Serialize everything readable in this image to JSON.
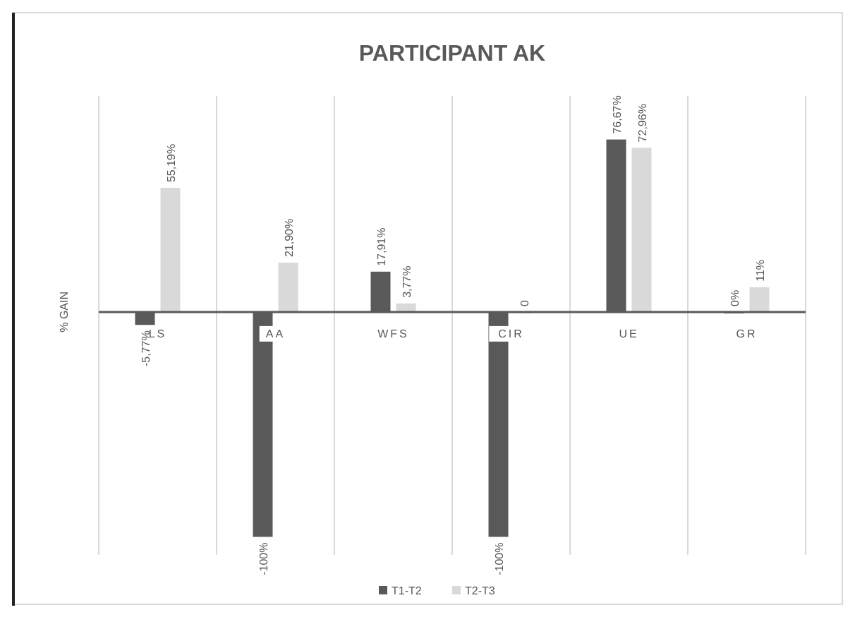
{
  "chart_data": {
    "type": "bar",
    "title": "PARTICIPANT AK",
    "ylabel": "% GAIN",
    "categories": [
      "LS",
      "AA",
      "WFS",
      "CIR",
      "UE",
      "GR"
    ],
    "series": [
      {
        "name": "T1-T2",
        "color": "#595959",
        "values": [
          -5.77,
          -100,
          17.91,
          -100,
          76.67,
          0
        ],
        "value_labels": [
          "-5,77%",
          "-100%",
          "17,91%",
          "-100%",
          "76,67%",
          "0%"
        ]
      },
      {
        "name": "T2-T3",
        "color": "#d9d9d9",
        "values": [
          55.19,
          21.9,
          3.77,
          0,
          72.96,
          11
        ],
        "value_labels": [
          "55,19%",
          "21,90%",
          "3,77%",
          "0",
          "72,96%",
          "11%"
        ]
      }
    ],
    "ylim": [
      -108,
      96
    ],
    "grid": "x",
    "legend": "bottom"
  }
}
